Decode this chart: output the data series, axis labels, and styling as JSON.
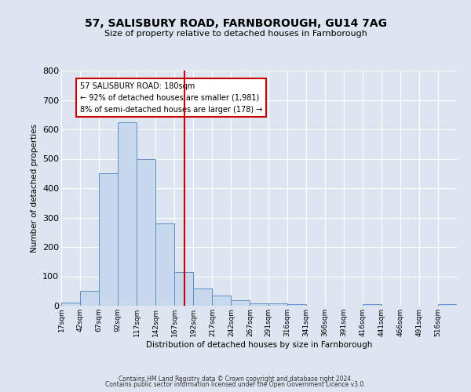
{
  "title": "57, SALISBURY ROAD, FARNBOROUGH, GU14 7AG",
  "subtitle": "Size of property relative to detached houses in Farnborough",
  "xlabel": "Distribution of detached houses by size in Farnborough",
  "ylabel": "Number of detached properties",
  "bin_labels": [
    "17sqm",
    "42sqm",
    "67sqm",
    "92sqm",
    "117sqm",
    "142sqm",
    "167sqm",
    "192sqm",
    "217sqm",
    "242sqm",
    "267sqm",
    "291sqm",
    "316sqm",
    "341sqm",
    "366sqm",
    "391sqm",
    "416sqm",
    "441sqm",
    "466sqm",
    "491sqm",
    "516sqm"
  ],
  "bar_values": [
    10,
    52,
    450,
    625,
    500,
    280,
    115,
    60,
    35,
    20,
    8,
    8,
    5,
    0,
    0,
    0,
    5,
    0,
    0,
    0,
    5
  ],
  "bin_edges": [
    17,
    42,
    67,
    92,
    117,
    142,
    167,
    192,
    217,
    242,
    267,
    291,
    316,
    341,
    366,
    391,
    416,
    441,
    466,
    491,
    516,
    541
  ],
  "property_size": 180,
  "bar_facecolor": "#c9d9ed",
  "bar_edgecolor": "#5b8dc8",
  "vline_color": "#cc0000",
  "annotation_line1": "57 SALISBURY ROAD: 180sqm",
  "annotation_line2": "← 92% of detached houses are smaller (1,981)",
  "annotation_line3": "8% of semi-detached houses are larger (178) →",
  "annotation_box_edgecolor": "#cc0000",
  "background_color": "#dde5f0",
  "ylim": [
    0,
    800
  ],
  "yticks": [
    0,
    100,
    200,
    300,
    400,
    500,
    600,
    700,
    800
  ],
  "footer_line1": "Contains HM Land Registry data © Crown copyright and database right 2024.",
  "footer_line2": "Contains public sector information licensed under the Open Government Licence v3.0."
}
